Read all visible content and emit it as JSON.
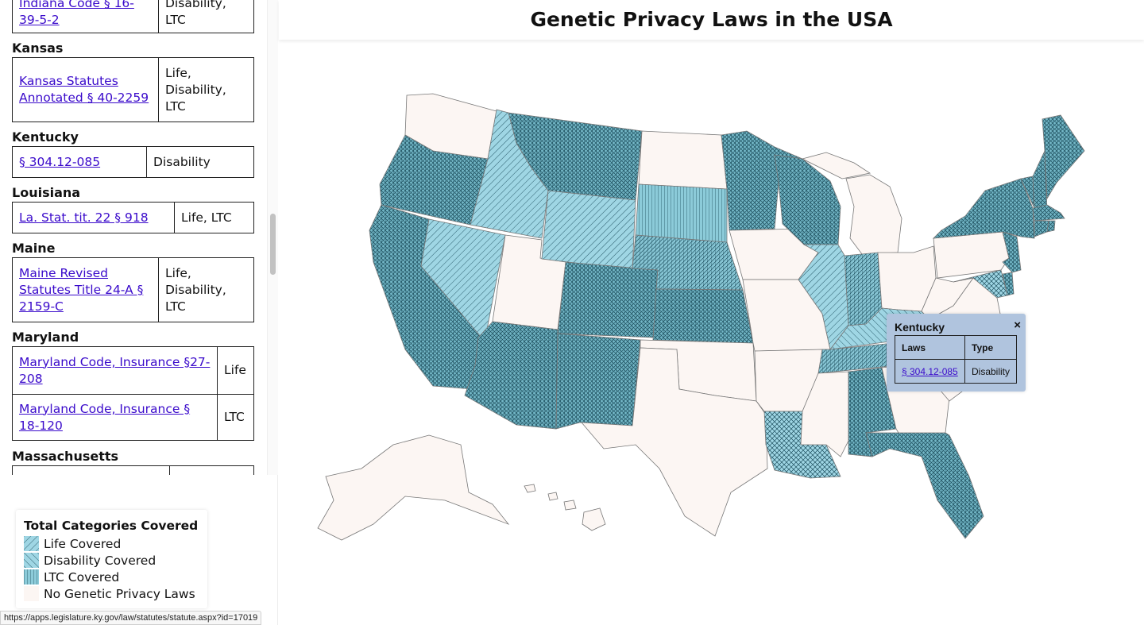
{
  "header": {
    "title": "Genetic Privacy Laws in the USA"
  },
  "sidebar": {
    "states": [
      {
        "name": "",
        "rows": [
          {
            "law": "Indiana Code § 16-39-5-2",
            "type": "Disability, LTC"
          }
        ]
      },
      {
        "name": "Kansas",
        "rows": [
          {
            "law": "Kansas Statutes Annotated § 40-2259",
            "type": "Life, Disability, LTC"
          }
        ]
      },
      {
        "name": "Kentucky",
        "rows": [
          {
            "law": "§ 304.12-085",
            "type": "Disability"
          }
        ]
      },
      {
        "name": "Louisiana",
        "rows": [
          {
            "law": "La. Stat. tit. 22 § 918",
            "type": "Life, LTC"
          }
        ]
      },
      {
        "name": "Maine",
        "rows": [
          {
            "law": "Maine Revised Statutes Title 24-A § 2159-C",
            "type": "Life, Disability, LTC"
          }
        ]
      },
      {
        "name": "Maryland",
        "rows": [
          {
            "law": "Maryland Code, Insurance §27-208",
            "type": "Life"
          },
          {
            "law": "Maryland Code, Insurance § 18-120",
            "type": "LTC"
          }
        ]
      },
      {
        "name": "Massachusetts",
        "rows": []
      }
    ]
  },
  "legend": {
    "title": "Total Categories Covered",
    "items": [
      {
        "label": "Life Covered",
        "pattern": "life"
      },
      {
        "label": "Disability Covered",
        "pattern": "disability"
      },
      {
        "label": "LTC Covered",
        "pattern": "ltc"
      },
      {
        "label": "No Genetic Privacy Laws",
        "pattern": "none"
      }
    ]
  },
  "colors": {
    "covered_fill": "#9fd6e4",
    "dense_fill": "#74b8c8",
    "none_fill": "#fcf6f3",
    "hatch": "#1e4f5e",
    "link": "#3a0acb",
    "tooltip_bg": "#b0c4de"
  },
  "tooltip": {
    "state": "Kentucky",
    "headers": {
      "laws": "Laws",
      "type": "Type"
    },
    "law": "§ 304.12-085",
    "type": "Disability",
    "close": "×"
  },
  "status_bar": {
    "url": "https://apps.legislature.ky.gov/law/statutes/statute.aspx?id=17019"
  },
  "map_data": {
    "categories": [
      "Life",
      "Disability",
      "LTC"
    ],
    "states": [
      {
        "code": "WA",
        "covered": []
      },
      {
        "code": "OR",
        "covered": [
          "Life",
          "Disability",
          "LTC"
        ]
      },
      {
        "code": "CA",
        "covered": [
          "Life",
          "Disability",
          "LTC"
        ]
      },
      {
        "code": "ID",
        "covered": [
          "Life"
        ]
      },
      {
        "code": "NV",
        "covered": [
          "Life"
        ]
      },
      {
        "code": "UT",
        "covered": []
      },
      {
        "code": "AZ",
        "covered": [
          "Life",
          "Disability",
          "LTC"
        ]
      },
      {
        "code": "MT",
        "covered": [
          "Life",
          "Disability",
          "LTC"
        ]
      },
      {
        "code": "WY",
        "covered": [
          "Life"
        ]
      },
      {
        "code": "CO",
        "covered": [
          "Life",
          "Disability",
          "LTC"
        ]
      },
      {
        "code": "NM",
        "covered": [
          "Life",
          "Disability",
          "LTC"
        ]
      },
      {
        "code": "ND",
        "covered": []
      },
      {
        "code": "SD",
        "covered": [
          "LTC"
        ]
      },
      {
        "code": "NE",
        "covered": [
          "Disability",
          "LTC"
        ]
      },
      {
        "code": "KS",
        "covered": [
          "Life",
          "Disability",
          "LTC"
        ]
      },
      {
        "code": "OK",
        "covered": []
      },
      {
        "code": "TX",
        "covered": []
      },
      {
        "code": "MN",
        "covered": [
          "Life",
          "Disability",
          "LTC"
        ]
      },
      {
        "code": "IA",
        "covered": []
      },
      {
        "code": "MO",
        "covered": []
      },
      {
        "code": "AR",
        "covered": []
      },
      {
        "code": "LA",
        "covered": [
          "Life",
          "LTC"
        ]
      },
      {
        "code": "WI",
        "covered": [
          "Life",
          "Disability",
          "LTC"
        ]
      },
      {
        "code": "IL",
        "covered": [
          "Life"
        ]
      },
      {
        "code": "MI",
        "covered": []
      },
      {
        "code": "IN",
        "covered": [
          "Disability",
          "LTC"
        ]
      },
      {
        "code": "OH",
        "covered": []
      },
      {
        "code": "KY",
        "covered": [
          "Disability"
        ]
      },
      {
        "code": "TN",
        "covered": [
          "Disability",
          "LTC"
        ]
      },
      {
        "code": "MS",
        "covered": []
      },
      {
        "code": "AL",
        "covered": [
          "Life",
          "Disability",
          "LTC"
        ]
      },
      {
        "code": "GA",
        "covered": []
      },
      {
        "code": "FL",
        "covered": [
          "Life",
          "Disability",
          "LTC"
        ]
      },
      {
        "code": "SC",
        "covered": []
      },
      {
        "code": "NC",
        "covered": []
      },
      {
        "code": "VA",
        "covered": []
      },
      {
        "code": "WV",
        "covered": []
      },
      {
        "code": "PA",
        "covered": []
      },
      {
        "code": "NY",
        "covered": [
          "Life",
          "Disability",
          "LTC"
        ]
      },
      {
        "code": "NJ",
        "covered": [
          "Life",
          "Disability",
          "LTC"
        ]
      },
      {
        "code": "MD",
        "covered": [
          "Life",
          "LTC"
        ]
      },
      {
        "code": "DE",
        "covered": [
          "Life",
          "Disability",
          "LTC"
        ]
      },
      {
        "code": "VT",
        "covered": [
          "Life",
          "Disability",
          "LTC"
        ]
      },
      {
        "code": "NH",
        "covered": [
          "Life",
          "Disability",
          "LTC"
        ]
      },
      {
        "code": "ME",
        "covered": [
          "Life",
          "Disability",
          "LTC"
        ]
      },
      {
        "code": "MA",
        "covered": [
          "Life",
          "Disability",
          "LTC"
        ]
      },
      {
        "code": "CT",
        "covered": [
          "Life",
          "Disability",
          "LTC"
        ]
      },
      {
        "code": "RI",
        "covered": [
          "Life",
          "Disability",
          "LTC"
        ]
      },
      {
        "code": "AK",
        "covered": []
      },
      {
        "code": "HI",
        "covered": []
      }
    ]
  }
}
